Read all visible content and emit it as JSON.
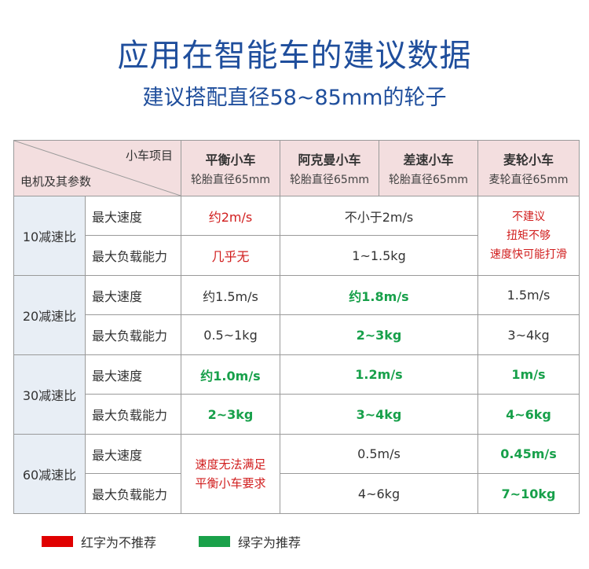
{
  "title": "应用在智能车的建议数据",
  "subtitle": "建议搭配直径58~85mm的轮子",
  "table": {
    "corner_top": "小车项目",
    "corner_bottom": "电机及其参数",
    "headers": [
      {
        "name": "平衡小车",
        "sub": "轮胎直径65mm"
      },
      {
        "name": "阿克曼小车",
        "sub": "轮胎直径65mm"
      },
      {
        "name": "差速小车",
        "sub": "轮胎直径65mm"
      },
      {
        "name": "麦轮小车",
        "sub": "麦轮直径65mm"
      }
    ],
    "param_speed": "最大速度",
    "param_load": "最大负载能力",
    "groups": [
      {
        "label": "10减速比",
        "speed": {
          "balance": "约2m/s",
          "ackdiff": "不小于2m/s"
        },
        "load": {
          "balance": "几乎无",
          "ackdiff": "1~1.5kg"
        },
        "mecanum_note": [
          "不建议",
          "扭矩不够",
          "速度快可能打滑"
        ]
      },
      {
        "label": "20减速比",
        "speed": {
          "balance": "约1.5m/s",
          "ackdiff": "约1.8m/s",
          "mecanum": "1.5m/s"
        },
        "load": {
          "balance": "0.5~1kg",
          "ackdiff": "2~3kg",
          "mecanum": "3~4kg"
        }
      },
      {
        "label": "30减速比",
        "speed": {
          "balance": "约1.0m/s",
          "ackdiff": "1.2m/s",
          "mecanum": "1m/s"
        },
        "load": {
          "balance": "2~3kg",
          "ackdiff": "3~4kg",
          "mecanum": "4~6kg"
        }
      },
      {
        "label": "60减速比",
        "balance_note": [
          "速度无法满足",
          "平衡小车要求"
        ],
        "speed": {
          "ackdiff": "0.5m/s",
          "mecanum": "0.45m/s"
        },
        "load": {
          "ackdiff": "4~6kg",
          "mecanum": "7~10kg"
        }
      }
    ]
  },
  "legend": {
    "red_label": "红字为不推荐",
    "green_label": "绿字为推荐",
    "red_color": "#e00000",
    "green_color": "#1aa14a"
  }
}
